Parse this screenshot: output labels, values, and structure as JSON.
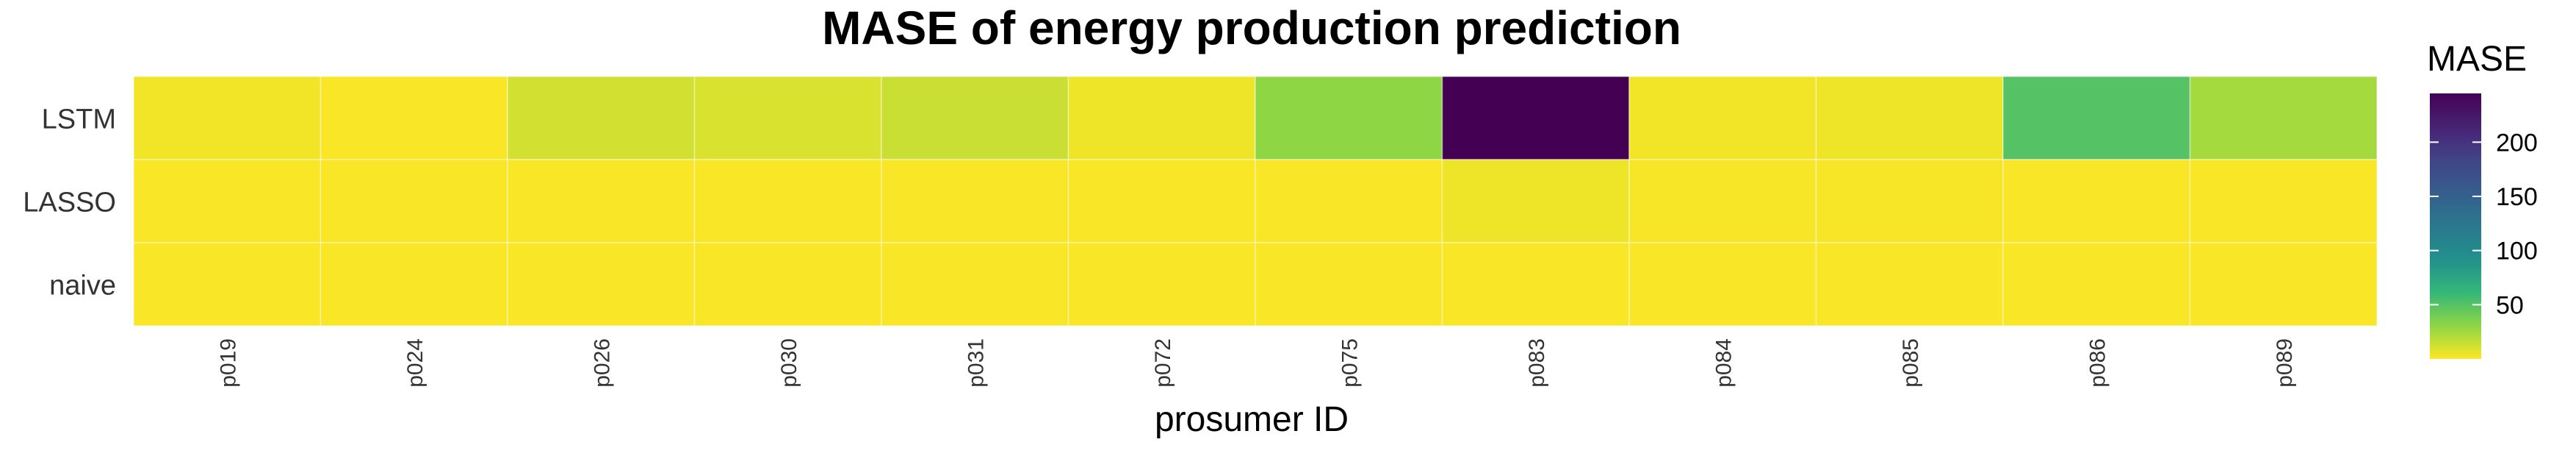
{
  "chart_data": {
    "type": "heatmap",
    "title": "MASE of energy production prediction",
    "xlabel": "prosumer ID",
    "ylabel": "",
    "x_categories": [
      "p019",
      "p024",
      "p026",
      "p030",
      "p031",
      "p072",
      "p075",
      "p083",
      "p084",
      "p085",
      "p086",
      "p089"
    ],
    "y_categories": [
      "LSTM",
      "LASSO",
      "naive"
    ],
    "values": [
      [
        3,
        1,
        12,
        10,
        14,
        4,
        30,
        245,
        3,
        4,
        50,
        24
      ],
      [
        1,
        1,
        1,
        1,
        1,
        1,
        1,
        4,
        2,
        2,
        1,
        1
      ],
      [
        1,
        1,
        1,
        1,
        1,
        1,
        1,
        1,
        1,
        1,
        1,
        1
      ]
    ],
    "colorbar": {
      "title": "MASE",
      "ticks": [
        50,
        100,
        150,
        200
      ],
      "range": [
        0,
        245
      ],
      "colorscale": "viridis-reversed"
    },
    "grid": false,
    "legend_position": "right"
  }
}
